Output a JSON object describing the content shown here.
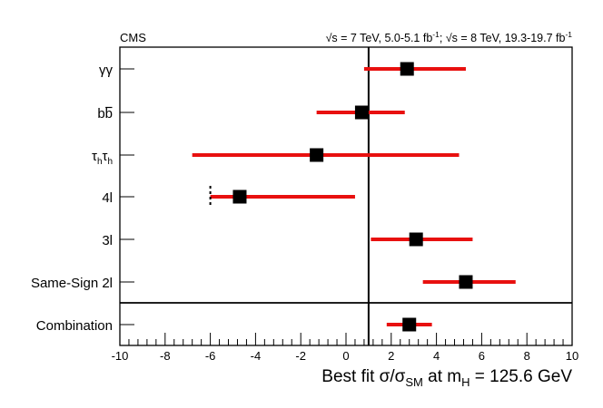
{
  "chart_data": {
    "type": "scatter",
    "experiment": "CMS",
    "energy_header": {
      "part1_sqrt": "√s",
      "part1_text": " = 7 TeV, 5.0-5.1 fb",
      "part1_sup": "-1",
      "sep": "; ",
      "part2_sqrt": "√s",
      "part2_text": " = 8 TeV, 19.3-19.7 fb",
      "part2_sup": "-1"
    },
    "xlabel": {
      "lead": "Best fit σ/σ",
      "sub1": "SM",
      "mid": " at m",
      "sub2": "H",
      "tail": " = 125.6 GeV"
    },
    "xlim": [
      -10,
      10
    ],
    "xticks": [
      -10,
      -8,
      -6,
      -4,
      -2,
      0,
      2,
      4,
      6,
      8,
      10
    ],
    "xtick_labels": [
      "-10",
      "-8",
      "-6",
      "-4",
      "-2",
      "0",
      "2",
      "4",
      "6",
      "8",
      "10"
    ],
    "reference_line_x": 1,
    "categories": [
      {
        "label": "γγ",
        "kind": "plain",
        "value": 2.7,
        "lo": 0.8,
        "hi": 5.3
      },
      {
        "label": "bb",
        "kind": "overline2",
        "value": 0.7,
        "lo": -1.3,
        "hi": 2.6
      },
      {
        "label": "τhτh",
        "kind": "tautau",
        "value": -1.3,
        "lo": -6.8,
        "hi": 5.0
      },
      {
        "label": "4l",
        "kind": "plain",
        "value": -4.7,
        "lo": -6.0,
        "hi": 0.4,
        "lo_marker": "dashed-limit"
      },
      {
        "label": "3l",
        "kind": "plain",
        "value": 3.1,
        "lo": 1.1,
        "hi": 5.6
      },
      {
        "label": "Same-Sign 2l",
        "kind": "plain",
        "value": 5.3,
        "lo": 3.4,
        "hi": 7.5
      }
    ],
    "combination": {
      "label": "Combination",
      "value": 2.8,
      "lo": 1.8,
      "hi": 3.8
    },
    "colors": {
      "marker": "#000000",
      "errorbar": "#e8100f",
      "axis": "#000000"
    }
  }
}
